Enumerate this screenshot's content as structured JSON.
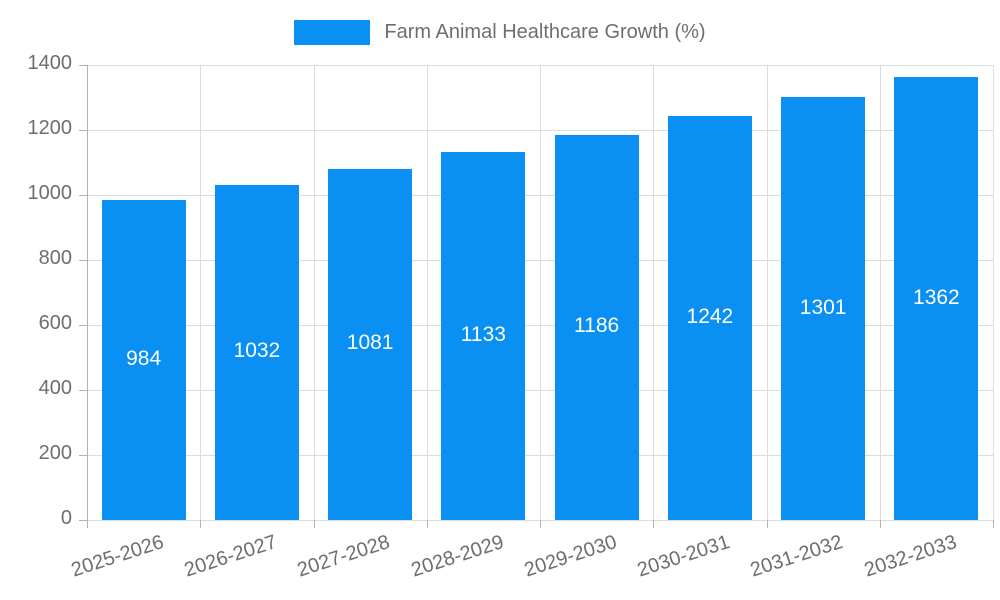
{
  "chart_data": {
    "type": "bar",
    "title": "",
    "legend": "Farm Animal Healthcare Growth (%)",
    "legend_position": "top",
    "categories": [
      "2025-2026",
      "2026-2027",
      "2027-2028",
      "2028-2029",
      "2029-2030",
      "2030-2031",
      "2031-2032",
      "2032-2033"
    ],
    "values": [
      984,
      1032,
      1081,
      1133,
      1186,
      1242,
      1301,
      1362
    ],
    "yticks": [
      0,
      200,
      400,
      600,
      800,
      1000,
      1200,
      1400
    ],
    "ylim": [
      0,
      1400
    ],
    "xlabel": "",
    "ylabel": "",
    "grid": true,
    "colors": {
      "bar": "#0a90f2",
      "grid": "#dcdcdc",
      "axis": "#b3b3b3",
      "tick_text": "#6e6e6e",
      "value_text": "#ffffff",
      "legend_text": "#6e6e6e"
    }
  }
}
